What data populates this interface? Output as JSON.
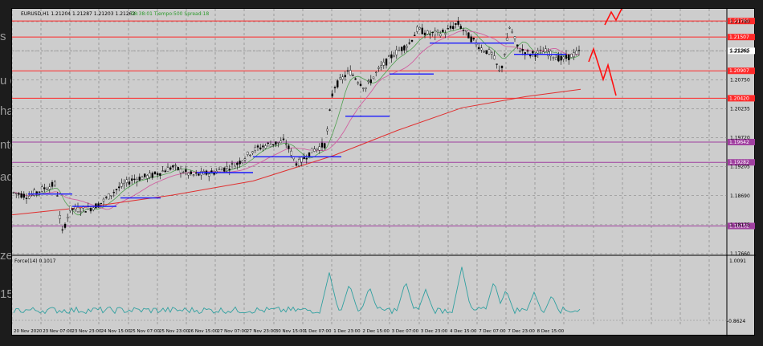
{
  "background": {
    "left_fragments": [
      "s",
      "u d",
      "ha",
      "nte",
      "ad",
      "ze",
      "15"
    ]
  },
  "header": {
    "symbol_line": "EURUSD,H1  1.21204 1.21287 1.21203 1.21262",
    "info_line": "08:38:01 Tiempo:500 Spread:18"
  },
  "indicator": {
    "label": "Force(14) 0.1017",
    "top_value": "1.0091",
    "bottom_value": "-0.8624"
  },
  "price_axis": {
    "ticks": [
      "1.21780",
      "1.21265",
      "1.20750",
      "1.20235",
      "1.19720",
      "1.19205",
      "1.18690",
      "1.18175",
      "1.17660"
    ],
    "tick_values": [
      1.2178,
      1.21265,
      1.2075,
      1.20235,
      1.1972,
      1.19205,
      1.1869,
      1.18175,
      1.1766
    ]
  },
  "levels": [
    {
      "label": "1.21792",
      "price": 1.21792,
      "color": "#ff2a2a"
    },
    {
      "label": "1.21507",
      "price": 1.21507,
      "color": "#ff2a2a"
    },
    {
      "label": "1.21262",
      "price": 1.21262,
      "color": "#000000",
      "badge": "#ffffff"
    },
    {
      "label": "1.20907",
      "price": 1.20907,
      "color": "#ff2a2a"
    },
    {
      "label": "1.20420",
      "price": 1.2042,
      "color": "#ff2a2a"
    },
    {
      "label": "1.19642",
      "price": 1.19642,
      "color": "#a040a0"
    },
    {
      "label": "1.19282",
      "price": 1.19282,
      "color": "#a040a0"
    },
    {
      "label": "1.18152",
      "price": 1.18152,
      "color": "#a040a0"
    }
  ],
  "time_axis": {
    "labels": [
      "20 Nov 2020",
      "23 Nov 07:00",
      "23 Nov 23:00",
      "24 Nov 15:00",
      "25 Nov 07:00",
      "25 Nov 23:00",
      "26 Nov 15:00",
      "27 Nov 07:00",
      "27 Nov 23:00",
      "30 Nov 15:00",
      "1 Dec 07:00",
      "1 Dec 23:00",
      "2 Dec 15:00",
      "3 Dec 07:00",
      "3 Dec 23:00",
      "4 Dec 15:00",
      "7 Dec 07:00",
      "7 Dec 23:00",
      "8 Dec 15:00"
    ]
  },
  "colors": {
    "chart_bg": "#cdcdcd",
    "resistance": "#ff2a2a",
    "support": "#a040a0",
    "ma_slow": "#e03030",
    "ma_mid": "#d060a0",
    "ma_fast": "#50a050",
    "indicator_line": "#30a0a0",
    "pivot": "#1a1aff",
    "projection": "#ff1010"
  }
}
